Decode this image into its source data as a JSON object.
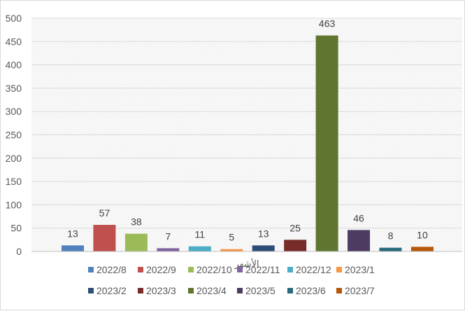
{
  "chart_data": {
    "type": "bar",
    "title": "",
    "xlabel": "الأشهر",
    "ylabel": "",
    "ylim": [
      0,
      500
    ],
    "yticks": [
      0,
      50,
      100,
      150,
      200,
      250,
      300,
      350,
      400,
      450,
      500
    ],
    "grid": true,
    "legend_position": "bottom",
    "categories": [
      "2022/8",
      "2022/9",
      "2022/10",
      "2022/11",
      "2022/12",
      "2023/1",
      "2023/2",
      "2023/3",
      "2023/4",
      "2023/5",
      "2023/6",
      "2023/7"
    ],
    "values": [
      13,
      57,
      38,
      7,
      11,
      5,
      13,
      25,
      463,
      46,
      8,
      10
    ],
    "colors": [
      "#4f81bd",
      "#c0504d",
      "#9bbb59",
      "#8064a2",
      "#4bacc6",
      "#f79646",
      "#2c4d75",
      "#772c2a",
      "#5f7530",
      "#4d3b62",
      "#276a7c",
      "#b65708"
    ]
  }
}
